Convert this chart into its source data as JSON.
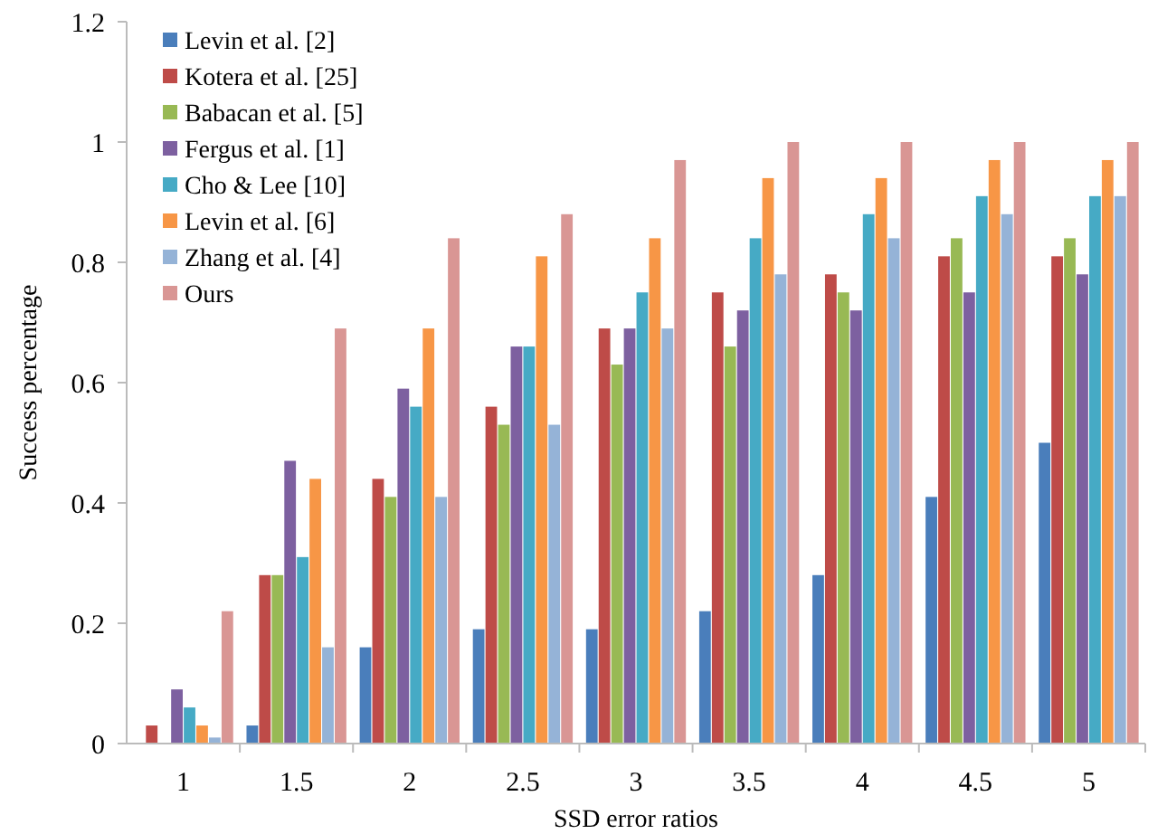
{
  "chart_data": {
    "type": "bar",
    "xlabel": "SSD error ratios",
    "ylabel": "Success percentage",
    "categories": [
      "1",
      "1.5",
      "2",
      "2.5",
      "3",
      "3.5",
      "4",
      "4.5",
      "5"
    ],
    "series": [
      {
        "name": "Levin et al. [2]",
        "color": "#4a7ebb",
        "values": [
          0,
          0.03,
          0.16,
          0.19,
          0.19,
          0.22,
          0.28,
          0.41,
          0.5
        ]
      },
      {
        "name": "Kotera et al. [25]",
        "color": "#be4b48",
        "values": [
          0.03,
          0.28,
          0.44,
          0.56,
          0.69,
          0.75,
          0.78,
          0.81,
          0.81
        ]
      },
      {
        "name": "Babacan et al. [5]",
        "color": "#98b954",
        "values": [
          0,
          0.28,
          0.41,
          0.53,
          0.63,
          0.66,
          0.75,
          0.84,
          0.84
        ]
      },
      {
        "name": "Fergus et al. [1]",
        "color": "#7d60a0",
        "values": [
          0.09,
          0.47,
          0.59,
          0.66,
          0.69,
          0.72,
          0.72,
          0.75,
          0.78
        ]
      },
      {
        "name": "Cho & Lee [10]",
        "color": "#46aac5",
        "values": [
          0.06,
          0.31,
          0.56,
          0.66,
          0.75,
          0.84,
          0.88,
          0.91,
          0.91
        ]
      },
      {
        "name": "Levin et al. [6]",
        "color": "#f79646",
        "values": [
          0.03,
          0.44,
          0.69,
          0.81,
          0.84,
          0.94,
          0.94,
          0.97,
          0.97
        ]
      },
      {
        "name": "Zhang et al. [4]",
        "color": "#95b3d7",
        "values": [
          0.01,
          0.16,
          0.41,
          0.53,
          0.69,
          0.78,
          0.84,
          0.88,
          0.91
        ]
      },
      {
        "name": "Ours",
        "color": "#d99694",
        "values": [
          0.22,
          0.69,
          0.84,
          0.88,
          0.97,
          1,
          1,
          1,
          1
        ]
      }
    ],
    "ylim": [
      0,
      1.2
    ],
    "yticks": [
      0,
      0.2,
      0.4,
      0.6,
      0.8,
      1,
      1.2
    ],
    "legend": "top left"
  }
}
